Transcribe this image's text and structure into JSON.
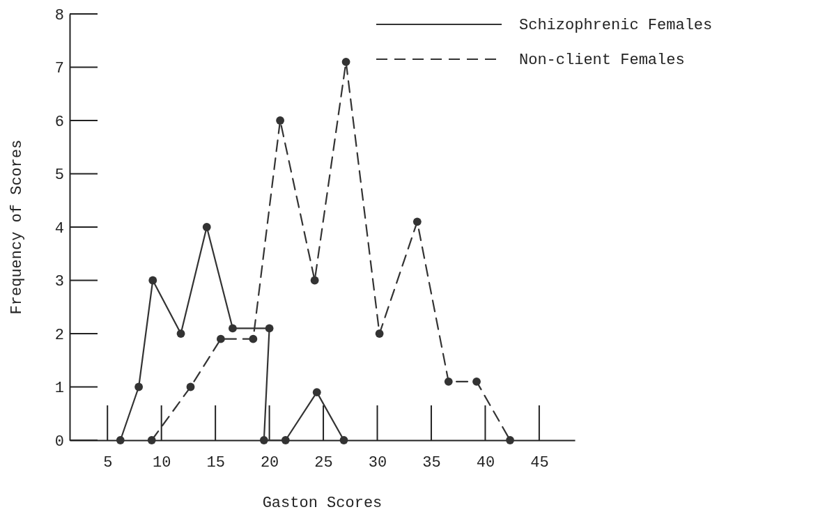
{
  "chart_data": {
    "type": "line",
    "xlabel": "Gaston Scores",
    "ylabel": "Frequency of Scores",
    "xlim": [
      1.5,
      48.3
    ],
    "xticks": [
      5,
      10,
      15,
      20,
      25,
      30,
      35,
      40,
      45
    ],
    "ylim": [
      0,
      8
    ],
    "yticks": [
      0,
      1,
      2,
      3,
      4,
      5,
      6,
      7,
      8
    ],
    "grid": false,
    "legend": "top right",
    "marker": "circle",
    "series": [
      {
        "name": "Schizophrenic Females",
        "color": "#333333",
        "line_style": "solid",
        "x": [
          6.2,
          7.9,
          9.2,
          11.8,
          14.2,
          16.6,
          20,
          19.5,
          21.5,
          24.4,
          26.9
        ],
        "values": [
          0,
          1,
          3,
          2,
          4,
          2.1,
          2.1,
          0,
          0,
          0.9,
          0
        ]
      },
      {
        "name": "Non-client Females",
        "color": "#333333",
        "line_style": "dashed",
        "x": [
          9.1,
          12.7,
          15.5,
          18.5,
          21,
          24.2,
          27.1,
          30.2,
          33.7,
          36.6,
          39.2,
          42.3
        ],
        "values": [
          0,
          1,
          1.9,
          1.9,
          6,
          3,
          7.1,
          2,
          4.1,
          1.1,
          1.1,
          0
        ]
      }
    ]
  }
}
